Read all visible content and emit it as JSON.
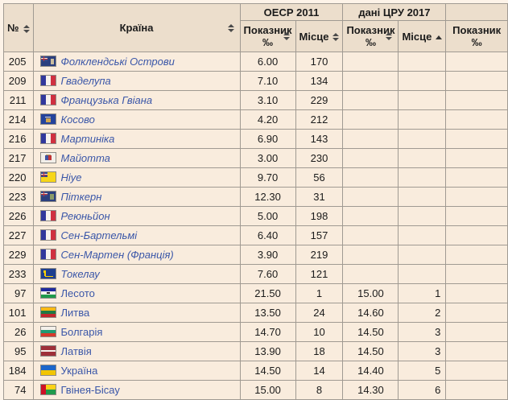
{
  "colors": {
    "page_bg": "#fdf3e8",
    "cell_bg": "#f9ecdd",
    "header_bg": "#ecdecc",
    "border": "#a09a92",
    "link": "#3a56a8"
  },
  "header": {
    "num": "№",
    "country": "Країна",
    "group_oecd": "ОЕСР 2011",
    "group_cia": "дані ЦРУ 2017",
    "indicator_line1": "Показник",
    "indicator_line2": "‰",
    "place": "Місце"
  },
  "table": {
    "rows": [
      {
        "num": "205",
        "country": "Фолклендські Острови",
        "flag": "fk",
        "italic": true,
        "oecd_value": "6.00",
        "oecd_place": "170",
        "cia_value": "",
        "cia_place": ""
      },
      {
        "num": "209",
        "country": "Гваделупа",
        "flag": "fr",
        "italic": true,
        "oecd_value": "7.10",
        "oecd_place": "134",
        "cia_value": "",
        "cia_place": ""
      },
      {
        "num": "211",
        "country": "Французька Гвіана",
        "flag": "fr",
        "italic": true,
        "oecd_value": "3.10",
        "oecd_place": "229",
        "cia_value": "",
        "cia_place": ""
      },
      {
        "num": "214",
        "country": "Косово",
        "flag": "xk",
        "italic": true,
        "oecd_value": "4.20",
        "oecd_place": "212",
        "cia_value": "",
        "cia_place": ""
      },
      {
        "num": "216",
        "country": "Мартиніка",
        "flag": "fr",
        "italic": true,
        "oecd_value": "6.90",
        "oecd_place": "143",
        "cia_value": "",
        "cia_place": ""
      },
      {
        "num": "217",
        "country": "Майотта",
        "flag": "yt",
        "italic": true,
        "oecd_value": "3.00",
        "oecd_place": "230",
        "cia_value": "",
        "cia_place": ""
      },
      {
        "num": "220",
        "country": "Ніуе",
        "flag": "nu",
        "italic": true,
        "oecd_value": "9.70",
        "oecd_place": "56",
        "cia_value": "",
        "cia_place": ""
      },
      {
        "num": "223",
        "country": "Піткерн",
        "flag": "pn",
        "italic": true,
        "oecd_value": "12.30",
        "oecd_place": "31",
        "cia_value": "",
        "cia_place": ""
      },
      {
        "num": "226",
        "country": "Реюньйон",
        "flag": "fr",
        "italic": true,
        "oecd_value": "5.00",
        "oecd_place": "198",
        "cia_value": "",
        "cia_place": ""
      },
      {
        "num": "227",
        "country": "Сен-Бартельмі",
        "flag": "fr",
        "italic": true,
        "oecd_value": "6.40",
        "oecd_place": "157",
        "cia_value": "",
        "cia_place": ""
      },
      {
        "num": "229",
        "country": "Сен-Мартен (Франція)",
        "flag": "fr",
        "italic": true,
        "oecd_value": "3.90",
        "oecd_place": "219",
        "cia_value": "",
        "cia_place": ""
      },
      {
        "num": "233",
        "country": "Токелау",
        "flag": "tk",
        "italic": true,
        "oecd_value": "7.60",
        "oecd_place": "121",
        "cia_value": "",
        "cia_place": ""
      },
      {
        "num": "97",
        "country": "Лесото",
        "flag": "ls",
        "italic": false,
        "oecd_value": "21.50",
        "oecd_place": "1",
        "cia_value": "15.00",
        "cia_place": "1"
      },
      {
        "num": "101",
        "country": "Литва",
        "flag": "lt",
        "italic": false,
        "oecd_value": "13.50",
        "oecd_place": "24",
        "cia_value": "14.60",
        "cia_place": "2"
      },
      {
        "num": "26",
        "country": "Болгарія",
        "flag": "bg",
        "italic": false,
        "oecd_value": "14.70",
        "oecd_place": "10",
        "cia_value": "14.50",
        "cia_place": "3"
      },
      {
        "num": "95",
        "country": "Латвія",
        "flag": "lv",
        "italic": false,
        "oecd_value": "13.90",
        "oecd_place": "18",
        "cia_value": "14.50",
        "cia_place": "3"
      },
      {
        "num": "184",
        "country": "Україна",
        "flag": "ua",
        "italic": false,
        "oecd_value": "14.50",
        "oecd_place": "14",
        "cia_value": "14.40",
        "cia_place": "5"
      },
      {
        "num": "74",
        "country": "Гвінея-Бісау",
        "flag": "gw",
        "italic": false,
        "oecd_value": "15.00",
        "oecd_place": "8",
        "cia_value": "14.30",
        "cia_place": "6"
      }
    ]
  },
  "flags": {
    "fk": [
      [
        0,
        0,
        18,
        12,
        "#2b3f7e"
      ],
      [
        0,
        0,
        8,
        6,
        "#35498a"
      ],
      [
        0,
        2.4,
        8,
        1.6,
        "#e9e5de"
      ],
      [
        3.1,
        0,
        1.8,
        6,
        "#e9e5de"
      ],
      [
        0,
        2.9,
        8,
        0.8,
        "#c23437"
      ],
      [
        3.6,
        0,
        0.9,
        6,
        "#c23437"
      ],
      [
        12,
        3,
        4.5,
        6.5,
        "#cbbd9e"
      ]
    ],
    "fr": [
      [
        0,
        0,
        6,
        12,
        "#31389c"
      ],
      [
        6,
        0,
        6,
        12,
        "#f6f2ee"
      ],
      [
        12,
        0,
        6,
        12,
        "#cf3040"
      ]
    ],
    "xk": [
      [
        0,
        0,
        18,
        12,
        "#24439c"
      ],
      [
        5.5,
        2.5,
        7,
        1.6,
        "#e8e2d4"
      ],
      [
        6,
        4.5,
        6,
        5,
        "#d0a650"
      ]
    ],
    "yt": [
      [
        0,
        0,
        18,
        12,
        "#f2efe9"
      ],
      [
        5,
        3,
        4,
        6,
        "#4053a0"
      ],
      [
        9,
        3,
        4,
        6,
        "#c23437"
      ],
      [
        6,
        2,
        6,
        1.4,
        "#b89b5e"
      ]
    ],
    "nu": [
      [
        0,
        0,
        18,
        12,
        "#f7d618"
      ],
      [
        0,
        0,
        8,
        6,
        "#35498a"
      ],
      [
        0,
        2.4,
        8,
        1.4,
        "#e9e5de"
      ],
      [
        3.2,
        0,
        1.6,
        6,
        "#e9e5de"
      ],
      [
        0,
        2.9,
        8,
        0.8,
        "#c23437"
      ],
      [
        3.6,
        0,
        0.9,
        6,
        "#c23437"
      ]
    ],
    "pn": [
      [
        0,
        0,
        18,
        12,
        "#2b3f7e"
      ],
      [
        0,
        0,
        8,
        6,
        "#35498a"
      ],
      [
        0,
        2.4,
        8,
        1.6,
        "#e9e5de"
      ],
      [
        3.1,
        0,
        1.8,
        6,
        "#e9e5de"
      ],
      [
        0,
        2.9,
        8,
        0.8,
        "#c23437"
      ],
      [
        3.6,
        0,
        0.9,
        6,
        "#c23437"
      ],
      [
        11.5,
        3,
        4.5,
        7,
        "#8a9a6a"
      ]
    ],
    "tk": [
      [
        0,
        0,
        18,
        12,
        "#1e3f8f"
      ],
      [
        3,
        1.5,
        3,
        3.5,
        "#ffd100"
      ],
      [
        4,
        5,
        2,
        4,
        "#ffd100"
      ],
      [
        5,
        8.5,
        10,
        1.6,
        "#ffd100"
      ]
    ],
    "ls": [
      [
        0,
        0,
        18,
        4,
        "#1f2a9e"
      ],
      [
        0,
        4,
        18,
        4,
        "#f6f2ee"
      ],
      [
        0,
        8,
        18,
        4,
        "#1f9a4b"
      ],
      [
        7.5,
        4.6,
        3.5,
        2.8,
        "#2a2a2a"
      ]
    ],
    "lt": [
      [
        0,
        0,
        18,
        4,
        "#fdb913"
      ],
      [
        0,
        4,
        18,
        4,
        "#1f7a44"
      ],
      [
        0,
        8,
        18,
        4,
        "#c1272d"
      ]
    ],
    "bg": [
      [
        0,
        0,
        18,
        4,
        "#f4f0ea"
      ],
      [
        0,
        4,
        18,
        4,
        "#209a72"
      ],
      [
        0,
        8,
        18,
        4,
        "#d6392b"
      ]
    ],
    "lv": [
      [
        0,
        0,
        18,
        12,
        "#9e3039"
      ],
      [
        0,
        5,
        18,
        2,
        "#f4f0ea"
      ]
    ],
    "ua": [
      [
        0,
        0,
        18,
        6,
        "#1c66c9"
      ],
      [
        0,
        6,
        18,
        6,
        "#f2c500"
      ]
    ],
    "gw": [
      [
        0,
        0,
        6,
        12,
        "#ce1126"
      ],
      [
        6,
        0,
        12,
        6,
        "#fcd116"
      ],
      [
        6,
        6,
        12,
        6,
        "#1f9a4b"
      ]
    ]
  }
}
